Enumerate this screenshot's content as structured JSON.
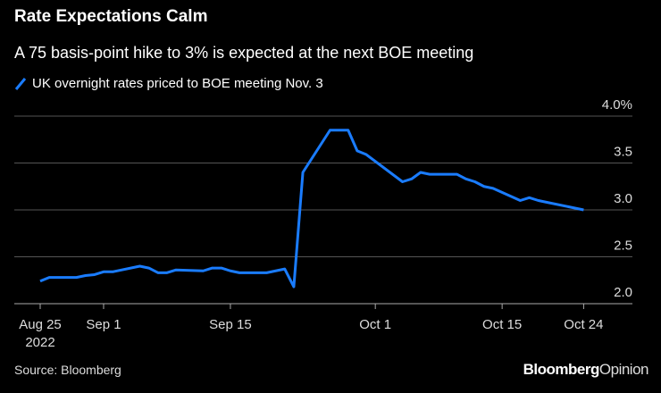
{
  "title": "Rate Expectations Calm",
  "subtitle": "A 75 basis-point hike to 3% is expected at the next BOE meeting",
  "source": "Source: Bloomberg",
  "logo": {
    "brand": "Bloomberg",
    "product": "Opinion"
  },
  "chart_data": {
    "type": "line",
    "title": "Rate Expectations Calm",
    "subtitle": "A 75 basis-point hike to 3% is expected at the next BOE meeting",
    "xlabel": "",
    "ylabel": "",
    "ylim": [
      2.0,
      4.0
    ],
    "yticks": [
      {
        "value": 2.0,
        "label": "2.0"
      },
      {
        "value": 2.5,
        "label": "2.5"
      },
      {
        "value": 3.0,
        "label": "3.0"
      },
      {
        "value": 3.5,
        "label": "3.5"
      },
      {
        "value": 4.0,
        "label": "4.0%"
      }
    ],
    "xticks": [
      {
        "date": "2022-08-25",
        "label": "Aug 25",
        "sublabel": "2022"
      },
      {
        "date": "2022-09-01",
        "label": "Sep 1"
      },
      {
        "date": "2022-09-15",
        "label": "Sep 15"
      },
      {
        "date": "2022-10-01",
        "label": "Oct 1"
      },
      {
        "date": "2022-10-15",
        "label": "Oct 15"
      },
      {
        "date": "2022-10-24",
        "label": "Oct 24"
      }
    ],
    "grid": true,
    "y_axis_side": "right",
    "legend_position": "top-left",
    "series": [
      {
        "name": "UK overnight rates priced to BOE meeting Nov. 3",
        "color": "#1a7cff",
        "x": [
          "2022-08-25",
          "2022-08-26",
          "2022-08-29",
          "2022-08-30",
          "2022-08-31",
          "2022-09-01",
          "2022-09-02",
          "2022-09-05",
          "2022-09-06",
          "2022-09-07",
          "2022-09-08",
          "2022-09-09",
          "2022-09-12",
          "2022-09-13",
          "2022-09-14",
          "2022-09-15",
          "2022-09-16",
          "2022-09-19",
          "2022-09-21",
          "2022-09-22",
          "2022-09-23",
          "2022-09-26",
          "2022-09-28",
          "2022-09-29",
          "2022-09-30",
          "2022-10-04",
          "2022-10-05",
          "2022-10-06",
          "2022-10-07",
          "2022-10-10",
          "2022-10-11",
          "2022-10-12",
          "2022-10-13",
          "2022-10-14",
          "2022-10-17",
          "2022-10-18",
          "2022-10-19",
          "2022-10-20",
          "2022-10-24"
        ],
        "y": [
          2.24,
          2.28,
          2.28,
          2.3,
          2.31,
          2.34,
          2.34,
          2.4,
          2.38,
          2.33,
          2.33,
          2.36,
          2.35,
          2.38,
          2.38,
          2.35,
          2.33,
          2.33,
          2.37,
          2.18,
          3.4,
          3.85,
          3.85,
          3.63,
          3.59,
          3.3,
          3.33,
          3.4,
          3.38,
          3.38,
          3.33,
          3.3,
          3.25,
          3.23,
          3.1,
          3.13,
          3.1,
          3.08,
          3.0
        ]
      }
    ]
  }
}
